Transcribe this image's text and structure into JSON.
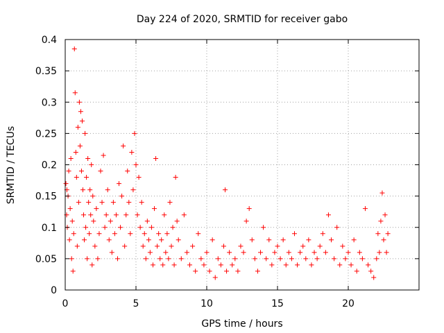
{
  "chart_data": {
    "type": "scatter",
    "title": "Day 224 of 2020, SRMTID for receiver gabo",
    "xlabel": "GPS time / hours",
    "ylabel": "SRMTID / TECUs",
    "xlim": [
      0,
      25
    ],
    "ylim": [
      0,
      0.4
    ],
    "xticks": [
      0,
      5,
      10,
      15,
      20
    ],
    "xtick_labels": [
      "0",
      "5",
      "10",
      "15",
      "20"
    ],
    "yticks": [
      0,
      0.05,
      0.1,
      0.15,
      0.2,
      0.25,
      0.3,
      0.35,
      0.4
    ],
    "ytick_labels": [
      "0",
      "0.05",
      "0.1",
      "0.15",
      "0.2",
      "0.25",
      "0.3",
      "0.35",
      "0.4"
    ],
    "grid": true,
    "marker": "plus",
    "color": "#ff0000",
    "series": [
      {
        "name": "SRMTID",
        "points": [
          [
            0.05,
            0.17
          ],
          [
            0.1,
            0.12
          ],
          [
            0.12,
            0.16
          ],
          [
            0.15,
            0.1
          ],
          [
            0.2,
            0.15
          ],
          [
            0.25,
            0.19
          ],
          [
            0.3,
            0.08
          ],
          [
            0.35,
            0.13
          ],
          [
            0.4,
            0.21
          ],
          [
            0.45,
            0.05
          ],
          [
            0.5,
            0.11
          ],
          [
            0.55,
            0.03
          ],
          [
            0.6,
            0.09
          ],
          [
            0.65,
            0.385
          ],
          [
            0.7,
            0.315
          ],
          [
            0.75,
            0.22
          ],
          [
            0.8,
            0.18
          ],
          [
            0.85,
            0.07
          ],
          [
            0.9,
            0.26
          ],
          [
            0.95,
            0.14
          ],
          [
            1.0,
            0.3
          ],
          [
            1.05,
            0.23
          ],
          [
            1.1,
            0.285
          ],
          [
            1.15,
            0.19
          ],
          [
            1.2,
            0.27
          ],
          [
            1.25,
            0.16
          ],
          [
            1.3,
            0.12
          ],
          [
            1.35,
            0.08
          ],
          [
            1.4,
            0.25
          ],
          [
            1.45,
            0.1
          ],
          [
            1.5,
            0.18
          ],
          [
            1.55,
            0.05
          ],
          [
            1.6,
            0.21
          ],
          [
            1.65,
            0.14
          ],
          [
            1.7,
            0.09
          ],
          [
            1.75,
            0.16
          ],
          [
            1.8,
            0.12
          ],
          [
            1.85,
            0.2
          ],
          [
            1.9,
            0.04
          ],
          [
            1.95,
            0.15
          ],
          [
            2.0,
            0.11
          ],
          [
            2.1,
            0.07
          ],
          [
            2.2,
            0.13
          ],
          [
            2.3,
            0.05
          ],
          [
            2.4,
            0.09
          ],
          [
            2.5,
            0.19
          ],
          [
            2.6,
            0.14
          ],
          [
            2.7,
            0.215
          ],
          [
            2.8,
            0.1
          ],
          [
            2.9,
            0.12
          ],
          [
            3.0,
            0.16
          ],
          [
            3.1,
            0.08
          ],
          [
            3.2,
            0.11
          ],
          [
            3.3,
            0.06
          ],
          [
            3.4,
            0.14
          ],
          [
            3.5,
            0.09
          ],
          [
            3.6,
            0.12
          ],
          [
            3.7,
            0.05
          ],
          [
            3.8,
            0.17
          ],
          [
            3.9,
            0.1
          ],
          [
            4.0,
            0.15
          ],
          [
            4.1,
            0.23
          ],
          [
            4.2,
            0.07
          ],
          [
            4.3,
            0.12
          ],
          [
            4.4,
            0.19
          ],
          [
            4.5,
            0.14
          ],
          [
            4.6,
            0.09
          ],
          [
            4.7,
            0.22
          ],
          [
            4.8,
            0.16
          ],
          [
            4.9,
            0.25
          ],
          [
            5.0,
            0.2
          ],
          [
            5.1,
            0.12
          ],
          [
            5.2,
            0.18
          ],
          [
            5.3,
            0.1
          ],
          [
            5.4,
            0.14
          ],
          [
            5.5,
            0.07
          ],
          [
            5.6,
            0.09
          ],
          [
            5.7,
            0.05
          ],
          [
            5.8,
            0.11
          ],
          [
            5.9,
            0.08
          ],
          [
            6.0,
            0.06
          ],
          [
            6.1,
            0.1
          ],
          [
            6.2,
            0.04
          ],
          [
            6.3,
            0.13
          ],
          [
            6.4,
            0.21
          ],
          [
            6.5,
            0.07
          ],
          [
            6.6,
            0.09
          ],
          [
            6.7,
            0.05
          ],
          [
            6.8,
            0.08
          ],
          [
            6.9,
            0.04
          ],
          [
            7.0,
            0.12
          ],
          [
            7.1,
            0.06
          ],
          [
            7.2,
            0.09
          ],
          [
            7.3,
            0.05
          ],
          [
            7.4,
            0.14
          ],
          [
            7.5,
            0.07
          ],
          [
            7.6,
            0.1
          ],
          [
            7.7,
            0.04
          ],
          [
            7.8,
            0.18
          ],
          [
            7.9,
            0.11
          ],
          [
            8.0,
            0.08
          ],
          [
            8.2,
            0.05
          ],
          [
            8.4,
            0.12
          ],
          [
            8.6,
            0.06
          ],
          [
            8.8,
            0.04
          ],
          [
            9.0,
            0.07
          ],
          [
            9.2,
            0.03
          ],
          [
            9.4,
            0.09
          ],
          [
            9.6,
            0.05
          ],
          [
            9.8,
            0.04
          ],
          [
            10.0,
            0.06
          ],
          [
            10.2,
            0.03
          ],
          [
            10.4,
            0.08
          ],
          [
            10.6,
            0.02
          ],
          [
            10.8,
            0.05
          ],
          [
            11.0,
            0.04
          ],
          [
            11.2,
            0.07
          ],
          [
            11.3,
            0.16
          ],
          [
            11.4,
            0.03
          ],
          [
            11.6,
            0.06
          ],
          [
            11.8,
            0.04
          ],
          [
            12.0,
            0.05
          ],
          [
            12.2,
            0.03
          ],
          [
            12.4,
            0.07
          ],
          [
            12.6,
            0.06
          ],
          [
            12.8,
            0.11
          ],
          [
            13.0,
            0.13
          ],
          [
            13.2,
            0.08
          ],
          [
            13.4,
            0.05
          ],
          [
            13.6,
            0.03
          ],
          [
            13.8,
            0.06
          ],
          [
            14.0,
            0.1
          ],
          [
            14.2,
            0.05
          ],
          [
            14.4,
            0.08
          ],
          [
            14.6,
            0.04
          ],
          [
            14.8,
            0.06
          ],
          [
            15.0,
            0.07
          ],
          [
            15.2,
            0.05
          ],
          [
            15.4,
            0.08
          ],
          [
            15.6,
            0.04
          ],
          [
            15.8,
            0.06
          ],
          [
            16.0,
            0.05
          ],
          [
            16.2,
            0.09
          ],
          [
            16.4,
            0.04
          ],
          [
            16.6,
            0.06
          ],
          [
            16.8,
            0.07
          ],
          [
            17.0,
            0.05
          ],
          [
            17.2,
            0.08
          ],
          [
            17.4,
            0.04
          ],
          [
            17.6,
            0.06
          ],
          [
            17.8,
            0.05
          ],
          [
            18.0,
            0.07
          ],
          [
            18.2,
            0.09
          ],
          [
            18.4,
            0.06
          ],
          [
            18.6,
            0.12
          ],
          [
            18.8,
            0.08
          ],
          [
            19.0,
            0.05
          ],
          [
            19.2,
            0.1
          ],
          [
            19.4,
            0.04
          ],
          [
            19.6,
            0.07
          ],
          [
            19.8,
            0.05
          ],
          [
            20.0,
            0.06
          ],
          [
            20.2,
            0.04
          ],
          [
            20.4,
            0.08
          ],
          [
            20.6,
            0.03
          ],
          [
            20.8,
            0.06
          ],
          [
            21.0,
            0.05
          ],
          [
            21.2,
            0.13
          ],
          [
            21.4,
            0.04
          ],
          [
            21.6,
            0.03
          ],
          [
            21.8,
            0.02
          ],
          [
            22.0,
            0.05
          ],
          [
            22.1,
            0.09
          ],
          [
            22.2,
            0.06
          ],
          [
            22.3,
            0.11
          ],
          [
            22.4,
            0.155
          ],
          [
            22.5,
            0.08
          ],
          [
            22.6,
            0.12
          ],
          [
            22.7,
            0.06
          ],
          [
            22.8,
            0.09
          ]
        ]
      }
    ]
  }
}
